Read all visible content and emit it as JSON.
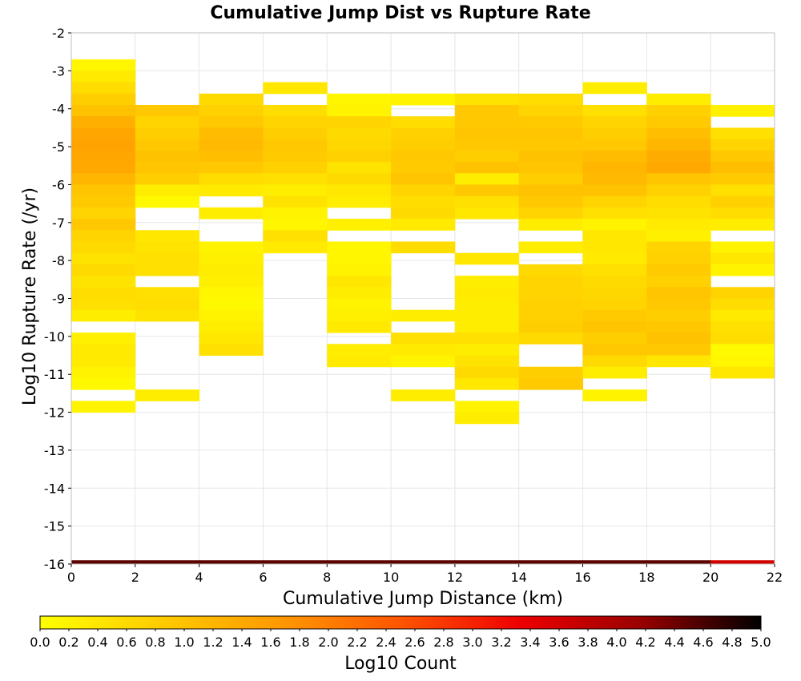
{
  "chart_data": {
    "type": "heatmap",
    "title": "Cumulative Jump Dist vs Rupture Rate",
    "xlabel": "Cumulative Jump Distance (km)",
    "ylabel": "Log10 Rupture Rate (/yr)",
    "xlim": [
      0,
      22
    ],
    "ylim": [
      -16,
      -2
    ],
    "x_ticks": [
      "0",
      "2",
      "4",
      "6",
      "8",
      "10",
      "12",
      "14",
      "16",
      "18",
      "20",
      "22"
    ],
    "y_ticks": [
      "-2",
      "-3",
      "-4",
      "-5",
      "-6",
      "-7",
      "-8",
      "-9",
      "-10",
      "-11",
      "-12",
      "-13",
      "-14",
      "-15",
      "-16"
    ],
    "bin_width_x": 2,
    "bin_height_y": 0.3,
    "grid": true,
    "colorbar": {
      "label": "Log10 Count",
      "range": [
        0,
        5
      ],
      "ticks": [
        "0.0",
        "0.2",
        "0.4",
        "0.6",
        "0.8",
        "1.0",
        "1.2",
        "1.4",
        "1.6",
        "1.8",
        "2.0",
        "2.2",
        "2.4",
        "2.6",
        "2.8",
        "3.0",
        "3.2",
        "3.4",
        "3.6",
        "3.8",
        "4.0",
        "4.2",
        "4.4",
        "4.6",
        "4.8",
        "5.0"
      ],
      "colors": [
        "#ffff00",
        "#ffcc00",
        "#ff9900",
        "#ff5500",
        "#ee0000",
        "#990000",
        "#000000"
      ]
    },
    "columns": [
      {
        "x": 0,
        "y_start": -2.7,
        "values": [
          0.15,
          0.35,
          0.55,
          0.8,
          1.0,
          1.3,
          1.45,
          1.5,
          1.45,
          1.4,
          1.2,
          0.95,
          0.85,
          0.7,
          0.9,
          0.7,
          0.6,
          0.45,
          0.6,
          0.45,
          0.55,
          0.5,
          0.3,
          null,
          0.25,
          0.35,
          0.35,
          0.2,
          0.1,
          null,
          0.2
        ]
      },
      {
        "x": 2,
        "y_start": -3.9,
        "values": [
          0.9,
          0.7,
          0.8,
          0.9,
          1.0,
          0.95,
          0.8,
          0.3,
          0.1,
          null,
          null,
          0.4,
          0.45,
          0.5,
          0.5,
          null,
          0.5,
          0.55,
          0.45,
          null,
          null,
          null,
          null,
          null,
          null,
          0.3
        ]
      },
      {
        "x": 4,
        "y_start": -3.6,
        "values": [
          0.6,
          0.75,
          0.9,
          1.1,
          1.15,
          1.05,
          0.9,
          0.55,
          0.35,
          null,
          0.3,
          null,
          null,
          0.2,
          0.25,
          0.3,
          0.25,
          0.15,
          0.1,
          0.2,
          0.3,
          0.4,
          0.5
        ]
      },
      {
        "x": 6,
        "y_start": -3.3,
        "values": [
          0.4,
          null,
          0.55,
          0.7,
          0.8,
          0.9,
          0.85,
          0.75,
          0.5,
          0.3,
          0.45,
          0.2,
          0.15,
          0.5,
          0.35
        ]
      },
      {
        "x": 8,
        "y_start": -3.6,
        "values": [
          0.15,
          0.2,
          0.7,
          0.6,
          0.65,
          0.75,
          0.45,
          0.6,
          0.4,
          0.3,
          null,
          0.25,
          null,
          0.15,
          0.15,
          0.2,
          0.4,
          0.3,
          0.2,
          0.25,
          0.35,
          null,
          0.3,
          0.35
        ]
      },
      {
        "x": 10,
        "y_start": -3.6,
        "values": [
          0.2,
          null,
          0.55,
          0.75,
          0.8,
          0.9,
          0.85,
          0.95,
          0.7,
          0.55,
          0.6,
          0.35,
          null,
          0.55,
          null,
          null,
          null,
          null,
          null,
          0.3,
          null,
          0.5,
          0.35,
          0.2,
          null,
          null,
          0.3
        ]
      },
      {
        "x": 12,
        "y_start": -3.6,
        "values": [
          0.45,
          0.9,
          0.9,
          0.95,
          0.9,
          0.8,
          1.0,
          0.3,
          0.9,
          0.5,
          0.4,
          null,
          null,
          null,
          0.4,
          null,
          0.3,
          0.35,
          0.3,
          0.3,
          0.3,
          0.5,
          0.3,
          0.45,
          0.6,
          0.4,
          null,
          0.2,
          0.3
        ]
      },
      {
        "x": 14,
        "y_start": -3.6,
        "values": [
          0.55,
          0.7,
          0.85,
          0.95,
          0.9,
          1.0,
          0.95,
          0.8,
          1.0,
          0.9,
          0.7,
          0.3,
          null,
          0.3,
          null,
          0.6,
          0.7,
          0.7,
          0.75,
          0.75,
          0.8,
          0.6,
          null,
          null,
          0.8,
          0.85
        ]
      },
      {
        "x": 16,
        "y_start": -3.3,
        "values": [
          0.3,
          null,
          0.5,
          0.7,
          0.8,
          0.9,
          1.1,
          1.2,
          1.15,
          1.0,
          0.7,
          0.5,
          0.2,
          0.4,
          0.4,
          0.35,
          0.5,
          0.6,
          0.65,
          0.7,
          0.85,
          0.95,
          0.8,
          0.9,
          0.6,
          0.3,
          null,
          0.2
        ]
      },
      {
        "x": 18,
        "y_start": -3.6,
        "values": [
          0.3,
          0.75,
          0.85,
          1.05,
          1.2,
          1.35,
          1.4,
          0.95,
          0.75,
          0.55,
          0.45,
          0.35,
          0.25,
          0.7,
          0.75,
          0.85,
          0.75,
          0.95,
          0.9,
          0.8,
          0.9,
          1.0,
          0.9,
          0.4
        ]
      },
      {
        "x": 20,
        "y_start": -3.9,
        "values": [
          0.25,
          null,
          0.5,
          0.7,
          0.9,
          1.05,
          0.85,
          0.5,
          0.75,
          0.55,
          0.3,
          null,
          0.2,
          0.4,
          0.2,
          null,
          0.7,
          0.55,
          0.35,
          0.5,
          0.55,
          0.1,
          0.15,
          0.4
        ]
      }
    ],
    "bottom_row": {
      "y": -15.9,
      "values": [
        4.5,
        4.5,
        4.5,
        4.5,
        4.5,
        4.5,
        4.5,
        4.5,
        4.5,
        4.5,
        3.6
      ]
    }
  }
}
